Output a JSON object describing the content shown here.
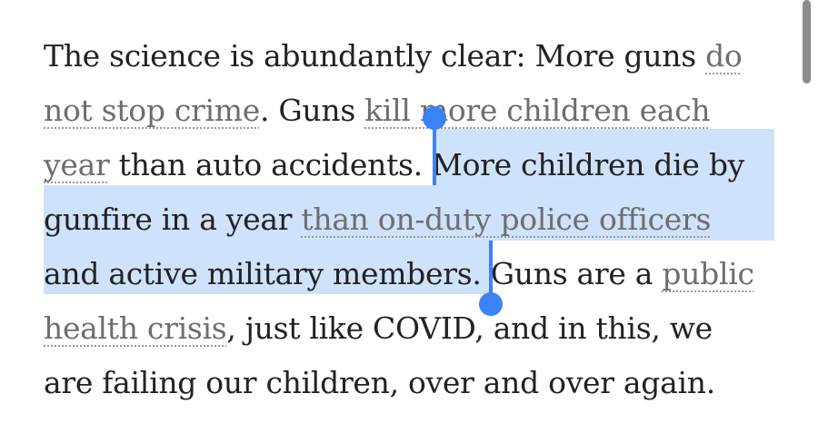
{
  "paragraph": {
    "l1": {
      "t1": "The science is abundantly clear: More guns ",
      "a1": "do"
    },
    "l2": {
      "a1": "not stop crime",
      "t1": ". Guns ",
      "a2": "kill more children each"
    },
    "l3": {
      "a1": "year",
      "t1": " than auto accidents. ",
      "t2": "More children die by"
    },
    "l4": {
      "t1": "gunfire in a year ",
      "a1": "than on-duty police officers"
    },
    "l5": {
      "t1": "and active military members.",
      "t2": " Guns are a ",
      "a1": "public"
    },
    "l6": {
      "a1": "health crisis",
      "t1": ", just like COVID, and in this, we"
    },
    "l7": {
      "t1": "are failing our children, over and over again."
    }
  },
  "selection": {
    "color": "#cfe2fb",
    "handle_color": "#3b82f6"
  }
}
